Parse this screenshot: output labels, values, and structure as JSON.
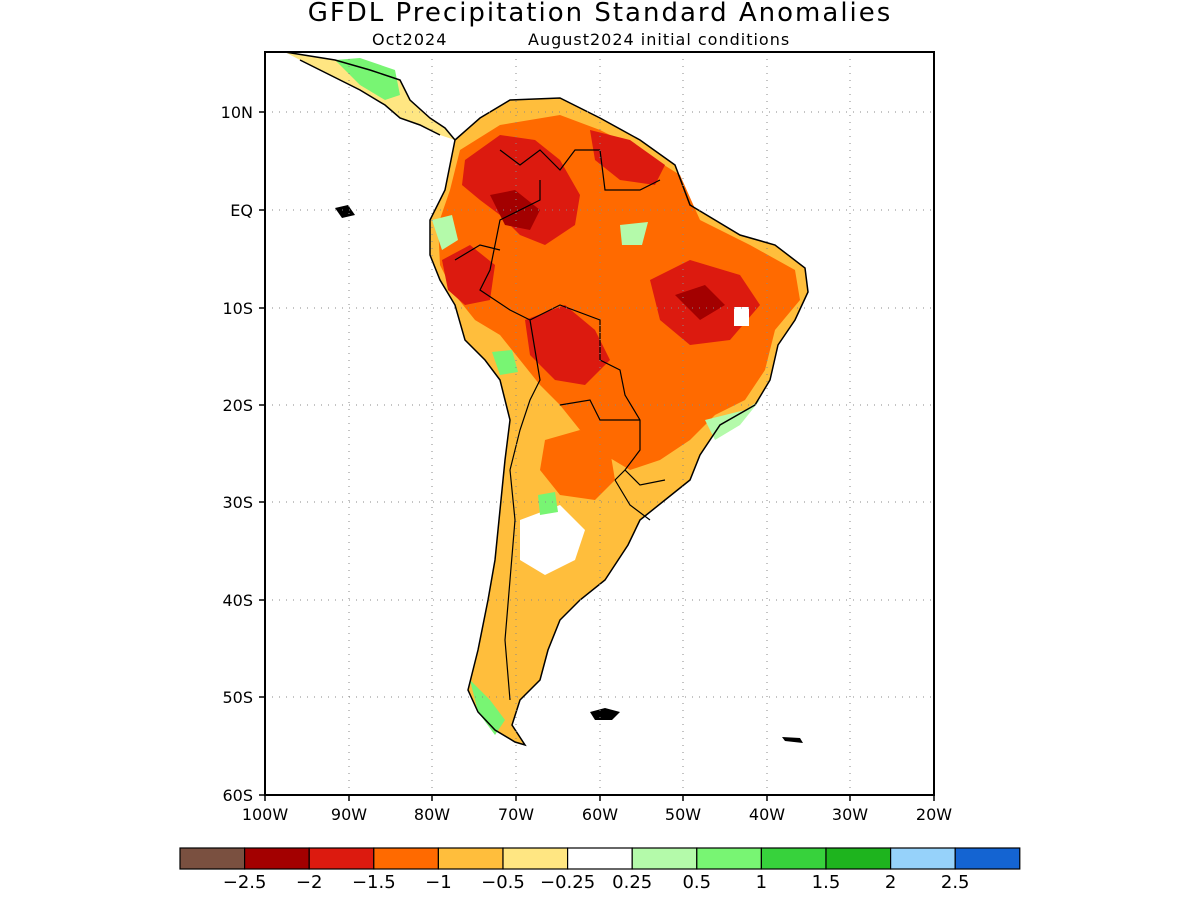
{
  "header": {
    "title": "GFDL Precipitation Standard Anomalies",
    "lead_month": "Oct2024",
    "initial_conditions": "August2024 initial conditions"
  },
  "axes": {
    "lat_ticks": [
      "10N",
      "EQ",
      "10S",
      "20S",
      "30S",
      "40S",
      "50S",
      "60S"
    ],
    "lon_ticks": [
      "100W",
      "90W",
      "80W",
      "70W",
      "60W",
      "50W",
      "40W",
      "30W",
      "20W"
    ]
  },
  "colorbar": {
    "colors": [
      "#7a5040",
      "#a30000",
      "#dc1a0f",
      "#ff6a00",
      "#ffbe3c",
      "#ffe682",
      "#ffffff",
      "#b4faaa",
      "#78f573",
      "#37d23c",
      "#1eb41e",
      "#96d2fa",
      "#1464d2"
    ],
    "labels": [
      "−2.5",
      "−2",
      "−1.5",
      "−1",
      "−0.5",
      "−0.25",
      "0.25",
      "0.5",
      "1",
      "1.5",
      "2",
      "2.5"
    ]
  }
}
